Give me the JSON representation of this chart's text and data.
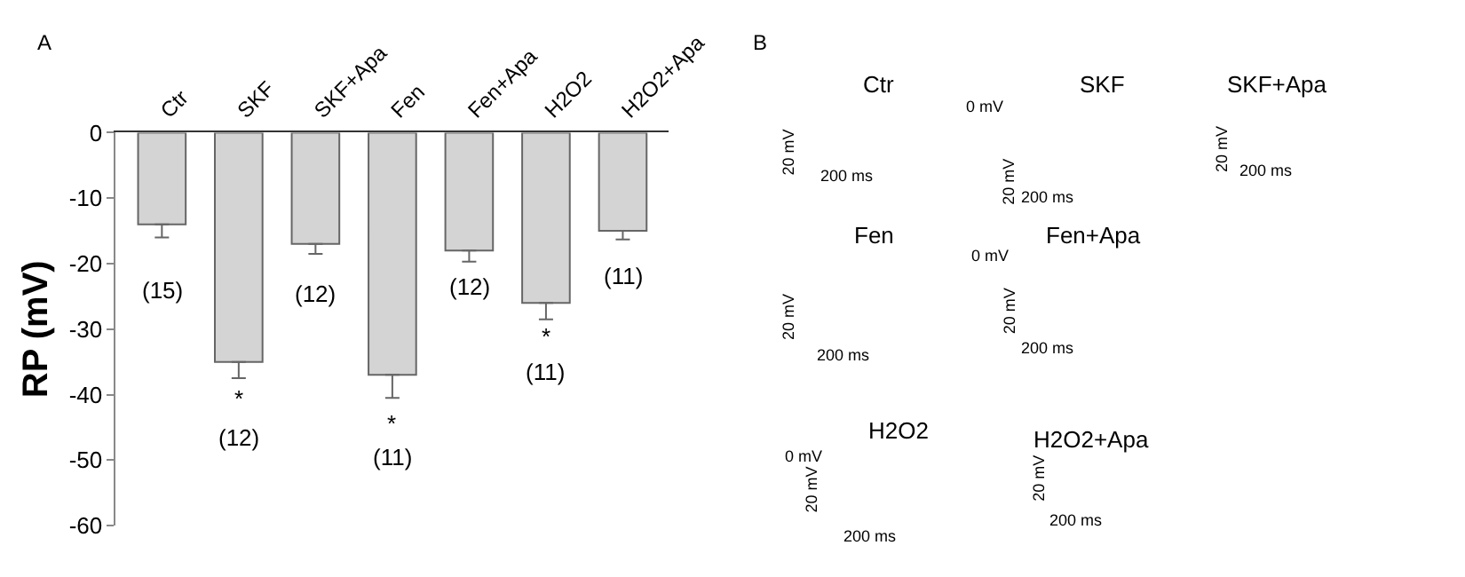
{
  "chart_data": [
    {
      "type": "bar",
      "title": "A",
      "ylabel": "RP (mV)",
      "categories": [
        "Ctr",
        "SKF",
        "SKF+Apa",
        "Fen",
        "Fen+Apa",
        "H2O2",
        "H2O2+Apa"
      ],
      "values": [
        -14,
        -35,
        -17,
        -37,
        -18,
        -26,
        -15
      ],
      "errors": [
        [
          -16,
          -14
        ],
        [
          -37.5,
          -35
        ],
        [
          -18.5,
          -17
        ],
        [
          -40.5,
          -37
        ],
        [
          -19.7,
          -18
        ],
        [
          -28.5,
          -26
        ],
        [
          -16.3,
          -15
        ]
      ],
      "color": "#d4d4d4",
      "ylim": [
        -60,
        0
      ],
      "yticks": [
        -60,
        -50,
        -40,
        -30,
        -20,
        -10,
        0
      ],
      "annotations": [
        "(15)",
        "*",
        "(12)",
        "(12)",
        "*",
        "(11)",
        "(12)",
        "*",
        "(11)",
        "(11)"
      ]
    },
    {
      "type": "other",
      "title": "B",
      "annotations": [
        "Ctr",
        "SKF",
        "SKF+Apa",
        "Fen",
        "Fen+Apa",
        "H2O2",
        "H2O2+Apa",
        "0 mV",
        "0 mV",
        "0 mV",
        "20 mV",
        "20 mV",
        "20 mV",
        "20 mV",
        "20 mV",
        "20 mV",
        "20 mV",
        "200 ms",
        "200 ms",
        "200 ms",
        "200 ms",
        "200 ms",
        "200 ms",
        "200 ms"
      ]
    }
  ]
}
